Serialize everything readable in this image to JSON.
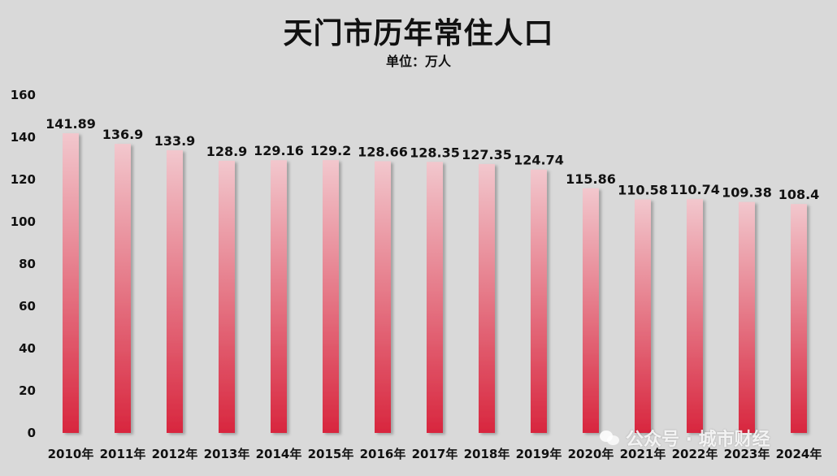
{
  "chart_data": {
    "type": "bar",
    "title": "天门市历年常住人口",
    "subtitle": "单位：万人",
    "categories": [
      "2010年",
      "2011年",
      "2012年",
      "2013年",
      "2014年",
      "2015年",
      "2016年",
      "2017年",
      "2018年",
      "2019年",
      "2020年",
      "2021年",
      "2022年",
      "2023年",
      "2024年"
    ],
    "values": [
      141.89,
      136.9,
      133.9,
      128.9,
      129.16,
      129.2,
      128.66,
      128.35,
      127.35,
      124.74,
      115.86,
      110.58,
      110.74,
      109.38,
      108.4
    ],
    "value_labels": [
      "141.89",
      "136.9",
      "133.9",
      "128.9",
      "129.16",
      "129.2",
      "128.66",
      "128.35",
      "127.35",
      "124.74",
      "115.86",
      "110.58",
      "110.74",
      "109.38",
      "108.4"
    ],
    "ylim": [
      0,
      160
    ],
    "yticks": [
      0,
      20,
      40,
      60,
      80,
      100,
      120,
      140,
      160
    ],
    "grid": false,
    "legend": "none",
    "colors": {
      "bar_top": "#f2c7cd",
      "bar_bottom": "#d8263e",
      "background": "#d9d9d9",
      "text": "#111111"
    }
  },
  "watermark": {
    "icon": "wechat-icon",
    "text": "公众号 · 城市财经"
  }
}
